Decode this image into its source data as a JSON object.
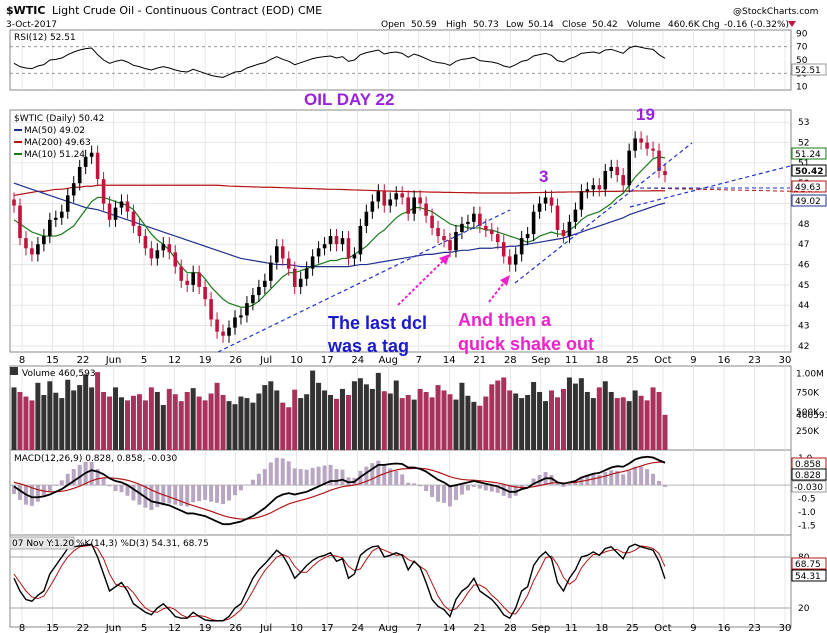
{
  "header": {
    "symbol": "$WTIC",
    "name": "Light Crude Oil - Continuous Contract (EOD)",
    "exchange": "CME",
    "watermark": "@StockCharts.com",
    "date": "3-Oct-2017",
    "quote": {
      "open_label": "Open",
      "open": "50.59",
      "high_label": "High",
      "high": "50.73",
      "low_label": "Low",
      "low": "50.14",
      "close_label": "Close",
      "close": "50.42",
      "volume_label": "Volume",
      "volume": "460.6K",
      "chg_label": "Chg",
      "chg": "-0.16 (-0.32%)"
    }
  },
  "colors": {
    "up": "#000000",
    "down": "#c0143c",
    "ma50": "#1f2f8f",
    "ma200": "#b31515",
    "ma10": "#1a7a1a",
    "trendline": "#2233cc",
    "annotation_blue": "#1a1acc",
    "annotation_magenta": "#ee22cc",
    "annotation_purple": "#9b22dd",
    "macd_hist": "#b9a6c3",
    "vol_up": "#333333",
    "vol_down": "#a8325c",
    "pane_border": "#888888",
    "grid": "#d8d8d8"
  },
  "chart_data": {
    "type": "candlestick",
    "x_axis_ticks": [
      "8",
      "15",
      "22",
      "Jun",
      "5",
      "12",
      "19",
      "26",
      "Jul",
      "10",
      "17",
      "24",
      "Aug",
      "7",
      "14",
      "21",
      "28",
      "Sep",
      "11",
      "18",
      "25",
      "Oct",
      "9",
      "16",
      "23",
      "30"
    ],
    "main": {
      "legend_title": "$WTIC (Daily) 50.42",
      "legend": [
        {
          "name": "MA(50) 49.02",
          "color": "#1f2f8f"
        },
        {
          "name": "MA(200) 49.63",
          "color": "#b31515"
        },
        {
          "name": "MA(10) 51.24",
          "color": "#1a7a1a"
        }
      ],
      "y_ticks": [
        "53",
        "52",
        "51",
        "50",
        "49",
        "48",
        "47",
        "46",
        "45",
        "44",
        "43",
        "42"
      ],
      "ylim": [
        41.7,
        53.6
      ],
      "last_labels": [
        "51.24",
        "50.42",
        "49.63",
        "49.02"
      ],
      "annotations": {
        "oil_day": "OIL DAY 22",
        "count_19": "19",
        "count_3": "3",
        "note_1_line1": "The last dcl",
        "note_1_line2": "was a tag",
        "note_2_line1": "And then a",
        "note_2_line2": "quick shake out"
      },
      "closes": [
        48.9,
        47.3,
        46.8,
        46.5,
        47.0,
        47.4,
        48.2,
        48.3,
        48.6,
        49.4,
        50.0,
        50.8,
        51.3,
        51.5,
        50.2,
        49.0,
        48.2,
        48.8,
        49.1,
        48.6,
        47.9,
        47.4,
        46.8,
        46.3,
        46.7,
        47.0,
        46.6,
        45.9,
        45.2,
        45.0,
        45.6,
        44.9,
        44.3,
        43.3,
        42.7,
        42.5,
        42.9,
        43.4,
        43.5,
        44.1,
        44.5,
        44.9,
        45.2,
        46.1,
        46.9,
        46.3,
        45.8,
        44.9,
        45.3,
        45.8,
        46.4,
        46.8,
        47.0,
        47.4,
        47.0,
        47.3,
        46.3,
        46.5,
        47.9,
        48.6,
        49.1,
        49.6,
        48.9,
        49.2,
        49.5,
        49.3,
        48.5,
        49.3,
        49.0,
        48.4,
        47.8,
        47.4,
        47.2,
        46.7,
        47.6,
        48.0,
        48.1,
        48.5,
        47.9,
        47.7,
        47.5,
        47.1,
        46.4,
        46.0,
        46.5,
        47.3,
        47.5,
        48.6,
        49.0,
        49.3,
        48.9,
        47.7,
        47.4,
        48.1,
        48.7,
        49.6,
        49.7,
        49.9,
        49.7,
        50.6,
        50.8,
        50.4,
        49.9,
        51.6,
        52.2,
        52.0,
        51.7,
        51.6,
        50.6,
        50.4
      ],
      "ma10": [
        48.2,
        48.0,
        47.8,
        47.6,
        47.5,
        47.4,
        47.4,
        47.4,
        47.5,
        47.7,
        47.9,
        48.3,
        48.7,
        49.1,
        49.3,
        49.3,
        49.2,
        49.1,
        49.0,
        48.9,
        48.7,
        48.3,
        47.9,
        47.5,
        47.2,
        47.0,
        46.7,
        46.3,
        45.9,
        45.6,
        45.6,
        45.6,
        45.3,
        44.9,
        44.6,
        44.3,
        44.1,
        44.0,
        43.9,
        43.9,
        44.0,
        44.2,
        44.5,
        44.8,
        45.1,
        45.4,
        45.6,
        45.6,
        45.7,
        45.8,
        45.9,
        46.0,
        46.1,
        46.2,
        46.2,
        46.3,
        46.3,
        46.5,
        46.7,
        46.9,
        47.2,
        47.5,
        47.7,
        48.0,
        48.3,
        48.5,
        48.6,
        48.8,
        48.8,
        48.7,
        48.6,
        48.4,
        48.2,
        48.0,
        47.9,
        47.9,
        47.8,
        47.8,
        47.8,
        47.7,
        47.7,
        47.6,
        47.5,
        47.4,
        47.3,
        47.2,
        47.1,
        47.2,
        47.4,
        47.5,
        47.6,
        47.5,
        47.5,
        47.7,
        47.9,
        48.2,
        48.4,
        48.5,
        48.6,
        48.8,
        49.0,
        49.3,
        49.5,
        49.9,
        50.3,
        50.6,
        50.9,
        51.2,
        51.3,
        51.24
      ],
      "ma50": [
        50.0,
        49.9,
        49.8,
        49.7,
        49.6,
        49.5,
        49.4,
        49.3,
        49.2,
        49.1,
        49.0,
        48.9,
        48.8,
        48.75,
        48.7,
        48.6,
        48.5,
        48.4,
        48.3,
        48.2,
        48.1,
        48.0,
        47.9,
        47.8,
        47.7,
        47.6,
        47.5,
        47.4,
        47.3,
        47.2,
        47.1,
        47.0,
        46.9,
        46.8,
        46.7,
        46.6,
        46.5,
        46.4,
        46.3,
        46.25,
        46.2,
        46.15,
        46.1,
        46.05,
        46.0,
        46.0,
        46.0,
        45.95,
        45.9,
        45.9,
        45.9,
        45.9,
        45.9,
        45.9,
        45.9,
        45.9,
        45.9,
        45.95,
        46.0,
        46.0,
        46.05,
        46.1,
        46.15,
        46.2,
        46.25,
        46.3,
        46.35,
        46.4,
        46.45,
        46.5,
        46.5,
        46.55,
        46.6,
        46.6,
        46.65,
        46.7,
        46.7,
        46.75,
        46.8,
        46.8,
        46.8,
        46.85,
        46.85,
        46.9,
        46.9,
        46.95,
        47.0,
        47.05,
        47.1,
        47.15,
        47.2,
        47.25,
        47.3,
        47.4,
        47.5,
        47.6,
        47.7,
        47.8,
        47.9,
        48.0,
        48.1,
        48.2,
        48.3,
        48.45,
        48.55,
        48.65,
        48.75,
        48.85,
        48.95,
        49.02
      ],
      "ma200": [
        49.4,
        49.45,
        49.5,
        49.55,
        49.6,
        49.6,
        49.65,
        49.7,
        49.7,
        49.75,
        49.8,
        49.8,
        49.85,
        49.85,
        49.9,
        49.9,
        49.9,
        49.9,
        49.9,
        49.9,
        49.9,
        49.9,
        49.9,
        49.9,
        49.9,
        49.9,
        49.9,
        49.9,
        49.9,
        49.9,
        49.9,
        49.9,
        49.9,
        49.9,
        49.9,
        49.88,
        49.86,
        49.85,
        49.84,
        49.83,
        49.82,
        49.81,
        49.8,
        49.8,
        49.79,
        49.78,
        49.77,
        49.76,
        49.75,
        49.74,
        49.73,
        49.72,
        49.71,
        49.7,
        49.7,
        49.69,
        49.68,
        49.67,
        49.66,
        49.65,
        49.64,
        49.63,
        49.62,
        49.61,
        49.6,
        49.6,
        49.59,
        49.58,
        49.58,
        49.57,
        49.56,
        49.56,
        49.55,
        49.55,
        49.54,
        49.54,
        49.53,
        49.53,
        49.52,
        49.52,
        49.52,
        49.52,
        49.52,
        49.52,
        49.52,
        49.53,
        49.53,
        49.54,
        49.54,
        49.55,
        49.55,
        49.56,
        49.56,
        49.57,
        49.57,
        49.58,
        49.58,
        49.59,
        49.59,
        49.6,
        49.6,
        49.6,
        49.61,
        49.61,
        49.62,
        49.62,
        49.62,
        49.63,
        49.63,
        49.63
      ]
    },
    "rsi": {
      "title": "RSI(12) 52.51",
      "y_ticks": [
        "90",
        "70",
        "50",
        "30",
        "10"
      ],
      "ylim": [
        5,
        95
      ],
      "last_label": "52.51",
      "values": [
        45,
        40,
        38,
        37,
        41,
        43,
        50,
        51,
        53,
        58,
        62,
        65,
        67,
        68,
        58,
        50,
        45,
        48,
        50,
        47,
        42,
        40,
        37,
        35,
        38,
        40,
        38,
        35,
        33,
        32,
        36,
        33,
        30,
        27,
        25,
        24,
        28,
        32,
        33,
        38,
        41,
        44,
        46,
        51,
        55,
        51,
        48,
        43,
        46,
        49,
        52,
        54,
        55,
        56,
        53,
        55,
        48,
        50,
        58,
        61,
        63,
        65,
        59,
        61,
        62,
        60,
        54,
        59,
        56,
        52,
        48,
        46,
        45,
        42,
        48,
        51,
        52,
        54,
        49,
        48,
        47,
        45,
        41,
        39,
        43,
        48,
        50,
        56,
        58,
        60,
        57,
        49,
        47,
        52,
        55,
        60,
        61,
        62,
        60,
        65,
        66,
        63,
        60,
        68,
        71,
        69,
        67,
        66,
        58,
        52.5
      ]
    },
    "volume": {
      "title": "Volume 460,593",
      "y_ticks": [
        "1.00M",
        "750K",
        "500K",
        "460593",
        "250K"
      ],
      "ylim": [
        0,
        1100000
      ],
      "last_label": "460593",
      "values": [
        820000,
        760000,
        700000,
        650000,
        880000,
        720000,
        900000,
        750000,
        680000,
        920000,
        780000,
        850000,
        990000,
        820000,
        1020000,
        760000,
        700000,
        820000,
        690000,
        650000,
        710000,
        730000,
        650000,
        820000,
        760000,
        590000,
        800000,
        730000,
        640000,
        760000,
        810000,
        700000,
        650000,
        740000,
        880000,
        720000,
        640000,
        600000,
        700000,
        680000,
        620000,
        740000,
        850000,
        900000,
        780000,
        620000,
        560000,
        790000,
        680000,
        730000,
        1040000,
        880000,
        780000,
        720000,
        670000,
        800000,
        720000,
        900000,
        940000,
        860000,
        800000,
        1010000,
        770000,
        740000,
        910000,
        680000,
        720000,
        660000,
        800000,
        760000,
        690000,
        850000,
        780000,
        730000,
        660000,
        880000,
        710000,
        630000,
        580000,
        700000,
        860000,
        910000,
        950000,
        780000,
        740000,
        680000,
        720000,
        890000,
        760000,
        640000,
        780000,
        690000,
        800000,
        950000,
        870000,
        940000,
        760000,
        680000,
        820000,
        900000,
        760000,
        680000,
        690000,
        640000,
        780000,
        710000,
        650000,
        820000,
        760000,
        460593
      ]
    },
    "macd": {
      "title": "MACD(12,26,9) 0.828, 0.858, -0.030",
      "y_ticks": [
        "1.0",
        "0.5",
        "0.0",
        "-0.5",
        "-1.0",
        "-1.5"
      ],
      "ylim": [
        -1.85,
        1.3
      ],
      "last_labels": [
        "0.858",
        "0.828",
        "-0.030"
      ],
      "macd": [
        -0.05,
        -0.2,
        -0.35,
        -0.45,
        -0.45,
        -0.42,
        -0.35,
        -0.25,
        -0.15,
        0.0,
        0.15,
        0.3,
        0.45,
        0.55,
        0.5,
        0.4,
        0.25,
        0.15,
        0.1,
        0.0,
        -0.15,
        -0.3,
        -0.45,
        -0.6,
        -0.65,
        -0.7,
        -0.75,
        -0.85,
        -0.95,
        -1.05,
        -1.05,
        -1.1,
        -1.15,
        -1.25,
        -1.35,
        -1.45,
        -1.45,
        -1.4,
        -1.35,
        -1.25,
        -1.15,
        -1.0,
        -0.85,
        -0.65,
        -0.45,
        -0.35,
        -0.3,
        -0.35,
        -0.3,
        -0.25,
        -0.15,
        -0.05,
        0.05,
        0.15,
        0.15,
        0.2,
        0.1,
        0.12,
        0.3,
        0.45,
        0.6,
        0.75,
        0.75,
        0.78,
        0.8,
        0.78,
        0.65,
        0.65,
        0.6,
        0.5,
        0.35,
        0.2,
        0.1,
        -0.05,
        0.0,
        0.05,
        0.1,
        0.15,
        0.1,
        0.05,
        0.0,
        -0.05,
        -0.15,
        -0.25,
        -0.25,
        -0.15,
        -0.1,
        0.05,
        0.15,
        0.25,
        0.25,
        0.1,
        0.05,
        0.1,
        0.15,
        0.28,
        0.35,
        0.42,
        0.45,
        0.55,
        0.65,
        0.7,
        0.68,
        0.8,
        0.95,
        1.02,
        1.05,
        1.02,
        0.92,
        0.828
      ],
      "signal": [
        0.1,
        0.05,
        -0.02,
        -0.1,
        -0.17,
        -0.22,
        -0.25,
        -0.25,
        -0.23,
        -0.19,
        -0.12,
        -0.04,
        0.06,
        0.16,
        0.23,
        0.27,
        0.27,
        0.25,
        0.22,
        0.18,
        0.11,
        0.03,
        -0.07,
        -0.18,
        -0.28,
        -0.36,
        -0.44,
        -0.52,
        -0.6,
        -0.69,
        -0.76,
        -0.83,
        -0.9,
        -0.97,
        -1.05,
        -1.13,
        -1.19,
        -1.23,
        -1.26,
        -1.26,
        -1.24,
        -1.19,
        -1.12,
        -1.03,
        -0.91,
        -0.8,
        -0.7,
        -0.63,
        -0.57,
        -0.51,
        -0.44,
        -0.36,
        -0.28,
        -0.19,
        -0.12,
        -0.06,
        -0.03,
        0.0,
        0.06,
        0.14,
        0.23,
        0.34,
        0.42,
        0.5,
        0.56,
        0.6,
        0.61,
        0.62,
        0.62,
        0.6,
        0.55,
        0.48,
        0.4,
        0.31,
        0.25,
        0.21,
        0.19,
        0.18,
        0.16,
        0.14,
        0.11,
        0.08,
        0.03,
        -0.03,
        -0.07,
        -0.09,
        -0.09,
        -0.06,
        -0.02,
        0.03,
        0.08,
        0.08,
        0.08,
        0.08,
        0.1,
        0.14,
        0.18,
        0.23,
        0.28,
        0.33,
        0.4,
        0.46,
        0.5,
        0.56,
        0.64,
        0.71,
        0.78,
        0.83,
        0.85,
        0.858
      ]
    },
    "stoch": {
      "title": "%K(14,3) %D(3) 54.31, 68.75",
      "chip": "07 Nov Y:1.20",
      "y_ticks": [
        "80",
        "20"
      ],
      "ylim": [
        0,
        100
      ],
      "last_labels": [
        "68.75",
        "54.31"
      ],
      "k": [
        55,
        40,
        30,
        28,
        35,
        40,
        60,
        70,
        80,
        90,
        92,
        93,
        94,
        95,
        80,
        60,
        40,
        45,
        50,
        40,
        25,
        20,
        15,
        12,
        20,
        25,
        18,
        10,
        8,
        8,
        15,
        10,
        6,
        5,
        5,
        5,
        10,
        20,
        25,
        40,
        55,
        65,
        72,
        80,
        88,
        82,
        70,
        55,
        62,
        70,
        76,
        80,
        82,
        85,
        75,
        78,
        55,
        60,
        82,
        88,
        92,
        93,
        80,
        82,
        85,
        82,
        65,
        75,
        68,
        50,
        30,
        22,
        18,
        10,
        30,
        40,
        45,
        55,
        40,
        35,
        30,
        22,
        12,
        8,
        20,
        40,
        45,
        70,
        80,
        86,
        78,
        50,
        40,
        55,
        65,
        80,
        82,
        86,
        82,
        90,
        92,
        85,
        78,
        92,
        95,
        92,
        90,
        88,
        75,
        54.31
      ],
      "d": [
        60,
        50,
        40,
        33,
        31,
        34,
        45,
        57,
        70,
        80,
        87,
        92,
        93,
        94,
        90,
        78,
        60,
        48,
        45,
        45,
        38,
        28,
        20,
        16,
        15,
        19,
        21,
        18,
        12,
        9,
        10,
        11,
        10,
        7,
        5,
        5,
        7,
        12,
        18,
        28,
        40,
        53,
        64,
        72,
        80,
        83,
        80,
        69,
        62,
        62,
        69,
        75,
        79,
        82,
        81,
        79,
        69,
        64,
        66,
        77,
        87,
        91,
        88,
        85,
        82,
        83,
        77,
        74,
        69,
        64,
        49,
        34,
        23,
        17,
        19,
        27,
        38,
        47,
        47,
        43,
        35,
        29,
        21,
        14,
        13,
        23,
        35,
        52,
        65,
        79,
        81,
        71,
        56,
        48,
        53,
        67,
        76,
        83,
        83,
        86,
        88,
        89,
        85,
        85,
        88,
        93,
        92,
        90,
        84,
        68.75
      ]
    }
  }
}
